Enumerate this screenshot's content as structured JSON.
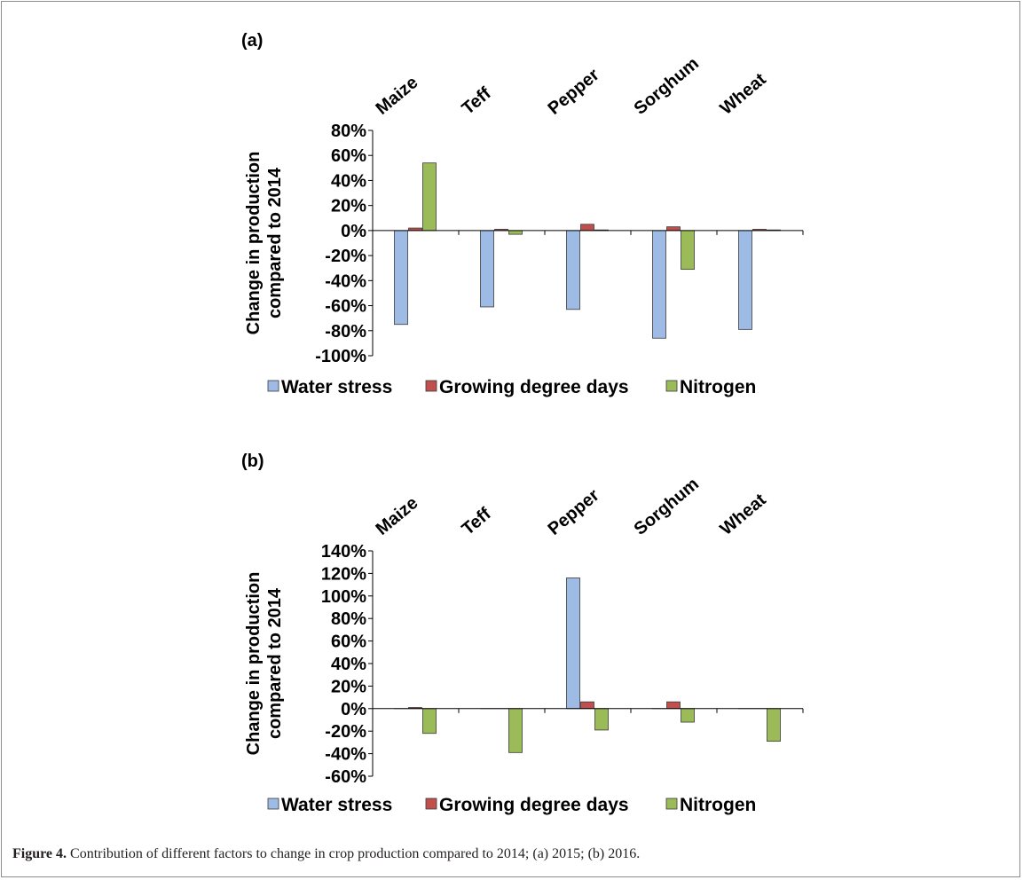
{
  "caption": {
    "label": "Figure 4.",
    "text": "Contribution of different factors to change in crop production compared to 2014; (a) 2015; (b) 2016."
  },
  "colors": {
    "water_stress": "#9dbbe4",
    "growing_degree_days": "#c0504d",
    "nitrogen": "#9bbb59"
  },
  "chart_data": [
    {
      "type": "bar",
      "panel_label": "(a)",
      "categories": [
        "Maize",
        "Teff",
        "Pepper",
        "Sorghum",
        "Wheat"
      ],
      "ylabel_lines": [
        "Change in production",
        "compared to 2014"
      ],
      "ylim": [
        -1.0,
        0.8
      ],
      "yticks": [
        "80%",
        "60%",
        "40%",
        "20%",
        "0%",
        "-20%",
        "-40%",
        "-60%",
        "-80%",
        "-100%"
      ],
      "legend_position": "bottom",
      "series": [
        {
          "name": "Water stress",
          "color": "#9dbbe4",
          "values": [
            -0.75,
            -0.61,
            -0.63,
            -0.86,
            -0.79
          ]
        },
        {
          "name": "Growing degree days",
          "color": "#c0504d",
          "values": [
            0.02,
            0.01,
            0.05,
            0.03,
            0.01
          ]
        },
        {
          "name": "Nitrogen",
          "color": "#9bbb59",
          "values": [
            0.54,
            -0.03,
            0.005,
            -0.31,
            0.005
          ]
        }
      ]
    },
    {
      "type": "bar",
      "panel_label": "(b)",
      "categories": [
        "Maize",
        "Teff",
        "Pepper",
        "Sorghum",
        "Wheat"
      ],
      "ylabel_lines": [
        "Change in production",
        "compared to 2014"
      ],
      "ylim": [
        -0.6,
        1.4
      ],
      "yticks": [
        "140%",
        "120%",
        "100%",
        "80%",
        "60%",
        "40%",
        "20%",
        "0%",
        "-20%",
        "-40%",
        "-60%"
      ],
      "legend_position": "bottom",
      "series": [
        {
          "name": "Water stress",
          "color": "#9dbbe4",
          "values": [
            0.0,
            0.0,
            1.16,
            0.0,
            0.0
          ]
        },
        {
          "name": "Growing degree days",
          "color": "#c0504d",
          "values": [
            0.01,
            0.0,
            0.06,
            0.06,
            0.0
          ]
        },
        {
          "name": "Nitrogen",
          "color": "#9bbb59",
          "values": [
            -0.22,
            -0.39,
            -0.19,
            -0.12,
            -0.29
          ]
        }
      ]
    }
  ]
}
